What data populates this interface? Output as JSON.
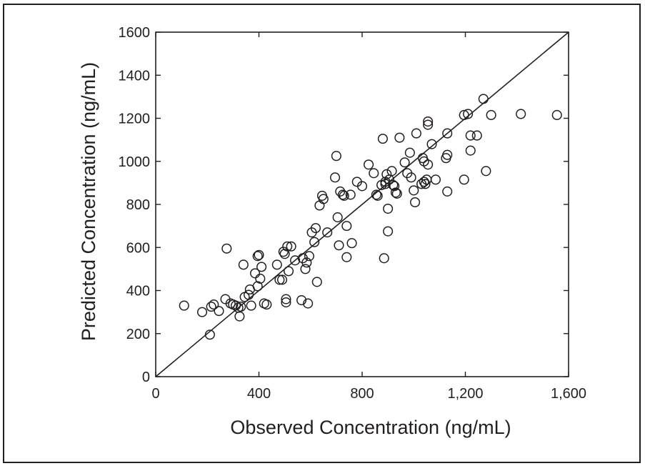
{
  "chart_data": {
    "type": "scatter",
    "title": "",
    "xlabel": "Observed Concentration (ng/mL)",
    "ylabel": "Predicted Concentration (ng/mL)",
    "xlim": [
      0,
      1600
    ],
    "ylim": [
      0,
      1600
    ],
    "x_ticks": [
      0,
      400,
      800,
      1200,
      1600
    ],
    "x_tick_labels": [
      "0",
      "400",
      "800",
      "1,200",
      "1,600"
    ],
    "y_ticks": [
      0,
      200,
      400,
      600,
      800,
      1000,
      1200,
      1400,
      1600
    ],
    "y_tick_labels": [
      "0",
      "200",
      "400",
      "600",
      "800",
      "1000",
      "1200",
      "1400",
      "1600"
    ],
    "grid": false,
    "marker": "open-circle",
    "reference_line": {
      "from": [
        0,
        0
      ],
      "to": [
        1600,
        1600
      ]
    },
    "points": [
      [
        110,
        330
      ],
      [
        180,
        300
      ],
      [
        210,
        195
      ],
      [
        215,
        325
      ],
      [
        225,
        335
      ],
      [
        245,
        305
      ],
      [
        270,
        360
      ],
      [
        275,
        595
      ],
      [
        290,
        340
      ],
      [
        300,
        335
      ],
      [
        310,
        330
      ],
      [
        320,
        320
      ],
      [
        325,
        280
      ],
      [
        330,
        325
      ],
      [
        340,
        520
      ],
      [
        345,
        370
      ],
      [
        360,
        380
      ],
      [
        365,
        405
      ],
      [
        370,
        330
      ],
      [
        385,
        480
      ],
      [
        395,
        420
      ],
      [
        395,
        560
      ],
      [
        400,
        565
      ],
      [
        405,
        455
      ],
      [
        410,
        510
      ],
      [
        420,
        340
      ],
      [
        430,
        335
      ],
      [
        470,
        520
      ],
      [
        480,
        450
      ],
      [
        490,
        450
      ],
      [
        495,
        580
      ],
      [
        500,
        570
      ],
      [
        505,
        360
      ],
      [
        505,
        345
      ],
      [
        510,
        605
      ],
      [
        515,
        490
      ],
      [
        525,
        605
      ],
      [
        540,
        540
      ],
      [
        565,
        355
      ],
      [
        570,
        550
      ],
      [
        580,
        500
      ],
      [
        585,
        530
      ],
      [
        590,
        340
      ],
      [
        595,
        560
      ],
      [
        605,
        670
      ],
      [
        615,
        625
      ],
      [
        620,
        690
      ],
      [
        625,
        440
      ],
      [
        635,
        795
      ],
      [
        645,
        840
      ],
      [
        650,
        825
      ],
      [
        665,
        670
      ],
      [
        695,
        925
      ],
      [
        700,
        1025
      ],
      [
        705,
        740
      ],
      [
        710,
        610
      ],
      [
        715,
        860
      ],
      [
        725,
        845
      ],
      [
        730,
        840
      ],
      [
        740,
        555
      ],
      [
        740,
        700
      ],
      [
        755,
        845
      ],
      [
        760,
        620
      ],
      [
        780,
        905
      ],
      [
        800,
        885
      ],
      [
        825,
        985
      ],
      [
        845,
        945
      ],
      [
        855,
        845
      ],
      [
        860,
        840
      ],
      [
        875,
        890
      ],
      [
        880,
        1105
      ],
      [
        885,
        550
      ],
      [
        890,
        905
      ],
      [
        890,
        895
      ],
      [
        895,
        940
      ],
      [
        900,
        675
      ],
      [
        900,
        780
      ],
      [
        905,
        915
      ],
      [
        915,
        955
      ],
      [
        920,
        890
      ],
      [
        925,
        885
      ],
      [
        930,
        855
      ],
      [
        935,
        850
      ],
      [
        945,
        1110
      ],
      [
        965,
        995
      ],
      [
        975,
        945
      ],
      [
        985,
        1040
      ],
      [
        990,
        925
      ],
      [
        1000,
        865
      ],
      [
        1005,
        810
      ],
      [
        1010,
        1130
      ],
      [
        1030,
        895
      ],
      [
        1035,
        1015
      ],
      [
        1040,
        1000
      ],
      [
        1040,
        905
      ],
      [
        1045,
        895
      ],
      [
        1050,
        915
      ],
      [
        1055,
        1185
      ],
      [
        1055,
        1170
      ],
      [
        1055,
        985
      ],
      [
        1070,
        1080
      ],
      [
        1085,
        915
      ],
      [
        1125,
        1015
      ],
      [
        1130,
        1030
      ],
      [
        1130,
        1130
      ],
      [
        1130,
        860
      ],
      [
        1195,
        1215
      ],
      [
        1195,
        915
      ],
      [
        1210,
        1220
      ],
      [
        1220,
        1050
      ],
      [
        1220,
        1120
      ],
      [
        1245,
        1120
      ],
      [
        1270,
        1290
      ],
      [
        1280,
        955
      ],
      [
        1300,
        1215
      ],
      [
        1415,
        1220
      ],
      [
        1555,
        1215
      ]
    ]
  }
}
